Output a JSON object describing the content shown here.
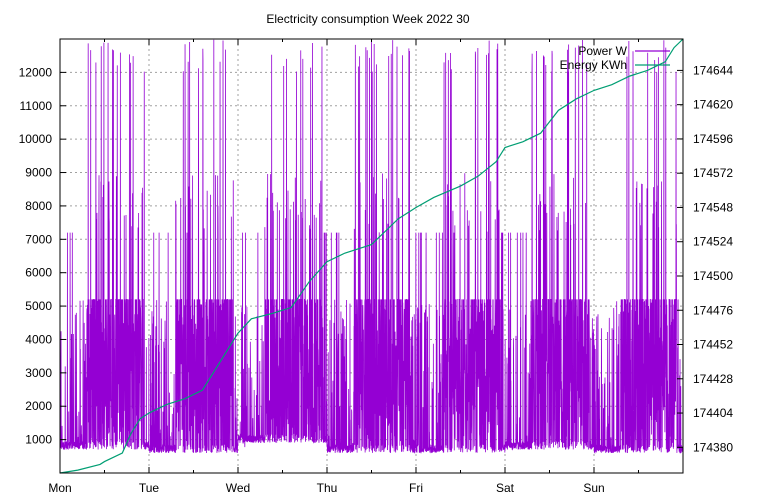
{
  "chart_data": {
    "type": "line",
    "title": "Electricity consumption Week 2022 30",
    "xlabel": "",
    "ylabel": "",
    "y2label": "",
    "x_categories": [
      "Mon",
      "Tue",
      "Wed",
      "Thu",
      "Fri",
      "Sat",
      "Sun"
    ],
    "x_range_days": [
      0,
      7
    ],
    "ylim": [
      0,
      13000
    ],
    "y_ticks": [
      1000,
      2000,
      3000,
      4000,
      5000,
      6000,
      7000,
      8000,
      9000,
      10000,
      11000,
      12000
    ],
    "y2lim": [
      174362,
      174666
    ],
    "y2_ticks": [
      174380,
      174404,
      174428,
      174452,
      174476,
      174500,
      174524,
      174548,
      174572,
      174596,
      174620,
      174644
    ],
    "grid": true,
    "legend_position": "top-right",
    "series": [
      {
        "name": "Power W",
        "axis": "left",
        "color": "#9400d3",
        "style": "dense spiky trace",
        "baseline_by_day": [
          700,
          600,
          900,
          600,
          600,
          700,
          600
        ],
        "typical_peaks": [
          5200,
          6000,
          7200,
          9000,
          12000
        ],
        "max_clipped": 13000
      },
      {
        "name": "Energy KWh",
        "axis": "right",
        "color": "#009e73",
        "points": [
          [
            0.0,
            174362
          ],
          [
            0.2,
            174364
          ],
          [
            0.45,
            174368
          ],
          [
            0.5,
            174370
          ],
          [
            0.7,
            174376
          ],
          [
            0.8,
            174390
          ],
          [
            0.9,
            174400
          ],
          [
            1.0,
            174404
          ],
          [
            1.2,
            174410
          ],
          [
            1.4,
            174414
          ],
          [
            1.6,
            174420
          ],
          [
            1.8,
            174440
          ],
          [
            2.0,
            174460
          ],
          [
            2.15,
            174470
          ],
          [
            2.4,
            174474
          ],
          [
            2.6,
            174478
          ],
          [
            2.8,
            174496
          ],
          [
            3.0,
            174510
          ],
          [
            3.2,
            174516
          ],
          [
            3.5,
            174522
          ],
          [
            3.8,
            174540
          ],
          [
            4.0,
            174548
          ],
          [
            4.2,
            174555
          ],
          [
            4.5,
            174563
          ],
          [
            4.7,
            174570
          ],
          [
            4.9,
            174580
          ],
          [
            5.0,
            174590
          ],
          [
            5.2,
            174594
          ],
          [
            5.4,
            174600
          ],
          [
            5.6,
            174616
          ],
          [
            5.8,
            174624
          ],
          [
            6.0,
            174630
          ],
          [
            6.2,
            174634
          ],
          [
            6.4,
            174640
          ],
          [
            6.6,
            174644
          ],
          [
            6.8,
            174650
          ],
          [
            6.9,
            174660
          ],
          [
            7.0,
            174666
          ]
        ]
      }
    ]
  }
}
